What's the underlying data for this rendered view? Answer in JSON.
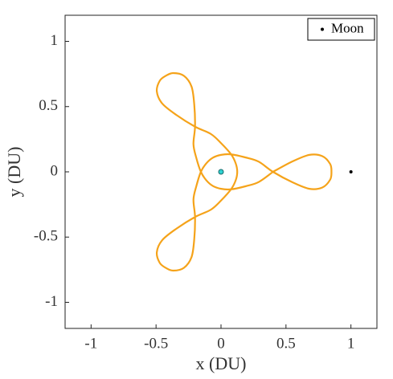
{
  "chart_data": {
    "type": "line",
    "x_label": "x (DU)",
    "y_label": "y (DU)",
    "xlim": [
      -1.2,
      1.2
    ],
    "ylim": [
      -1.2,
      1.2
    ],
    "xticks": [
      -1,
      -0.5,
      0,
      0.5,
      1
    ],
    "yticks": [
      -1,
      -0.5,
      0,
      0.5,
      1
    ],
    "legend": "upper right",
    "series": [
      {
        "type": "line",
        "color": "#f5a31a",
        "x": [
          0.4,
          0.55,
          0.68,
          0.78,
          0.84,
          0.85,
          0.84,
          0.78,
          0.68,
          0.55,
          0.4,
          0.29,
          0.19,
          0.078,
          0,
          -0.063,
          -0.113,
          -0.155,
          -0.19,
          -0.212,
          -0.2,
          -0.206,
          -0.227,
          -0.286,
          -0.368,
          -0.425,
          -0.472,
          -0.494,
          -0.453,
          -0.344,
          -0.2,
          -0.078,
          0,
          0.077,
          0.113,
          0.125,
          0.113,
          0.078,
          0,
          -0.078,
          -0.2,
          -0.344,
          -0.453,
          -0.494,
          -0.472,
          -0.425,
          -0.368,
          -0.286,
          -0.227,
          -0.206,
          -0.2,
          -0.212,
          -0.191,
          -0.155,
          -0.113,
          -0.063,
          0,
          0.078,
          0.191,
          0.29,
          0.4
        ],
        "values": [
          0,
          0.08,
          0.13,
          0.12,
          0.06,
          0,
          -0.06,
          -0.12,
          -0.13,
          -0.08,
          0,
          0.078,
          0.11,
          0.134,
          0.13,
          0.108,
          0.065,
          0,
          -0.11,
          -0.212,
          -0.346,
          -0.516,
          -0.654,
          -0.736,
          -0.757,
          -0.736,
          -0.697,
          -0.616,
          -0.524,
          -0.436,
          -0.346,
          -0.29,
          -0.22,
          -0.134,
          -0.065,
          0,
          0.065,
          0.134,
          0.22,
          0.29,
          0.346,
          0.436,
          0.524,
          0.616,
          0.697,
          0.736,
          0.757,
          0.736,
          0.654,
          0.516,
          0.346,
          0.212,
          0.11,
          0,
          -0.065,
          -0.108,
          -0.13,
          -0.134,
          -0.11,
          -0.078,
          0
        ]
      },
      {
        "type": "scatter",
        "color": "#2ed1d1",
        "x": [
          0
        ],
        "values": [
          0
        ]
      },
      {
        "type": "scatter",
        "name": "Moon",
        "color": "#000000",
        "x": [
          1
        ],
        "values": [
          0
        ]
      }
    ]
  }
}
